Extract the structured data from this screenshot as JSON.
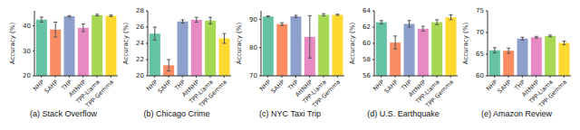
{
  "chart_data": [
    {
      "type": "bar",
      "title": "(a) Stack Overflow",
      "y_label": "Accuracy (%)",
      "categories": [
        "NHP",
        "SAHP",
        "THP",
        "AttNHP",
        "TPP-Llama",
        "TPP-Gemma"
      ],
      "values": [
        42.5,
        38.5,
        43.8,
        39.2,
        44.3,
        44.0
      ],
      "errors": [
        1.0,
        3.0,
        0.3,
        1.5,
        0.3,
        0.3
      ],
      "colors": [
        "#66c2a5",
        "#fc8d62",
        "#8da0cb",
        "#e78ac3",
        "#a6d854",
        "#ffd92f"
      ],
      "ylim": [
        20,
        46
      ],
      "yticks": [
        20,
        30,
        40
      ],
      "grid": false
    },
    {
      "type": "bar",
      "title": "(b) Chicago Crime",
      "y_label": "Accuracy (%)",
      "categories": [
        "NHP",
        "SAHP",
        "THP",
        "AttNHP",
        "TPP-Llama",
        "TPP-Gemma"
      ],
      "values": [
        25.2,
        21.3,
        26.7,
        26.9,
        26.8,
        24.6
      ],
      "errors": [
        0.8,
        0.7,
        0.2,
        0.3,
        0.4,
        0.6
      ],
      "colors": [
        "#66c2a5",
        "#fc8d62",
        "#8da0cb",
        "#e78ac3",
        "#a6d854",
        "#ffd92f"
      ],
      "ylim": [
        20,
        28
      ],
      "yticks": [
        20,
        22,
        24,
        26,
        28
      ],
      "grid": false
    },
    {
      "type": "bar",
      "title": "(c) NYC Taxi Trip",
      "y_label": "Accuracy (%)",
      "categories": [
        "NHP",
        "SAHP",
        "THP",
        "AttNHP",
        "TPP-Llama",
        "TPP-Gemma"
      ],
      "values": [
        91.0,
        88.3,
        91.0,
        83.8,
        91.6,
        91.6
      ],
      "errors": [
        0.2,
        0.5,
        0.4,
        7.5,
        0.4,
        0.2
      ],
      "colors": [
        "#66c2a5",
        "#fc8d62",
        "#8da0cb",
        "#e78ac3",
        "#a6d854",
        "#ffd92f"
      ],
      "ylim": [
        70,
        93
      ],
      "yticks": [
        70,
        80,
        90
      ],
      "grid": false
    },
    {
      "type": "bar",
      "title": "(d) U.S. Earthquake",
      "y_label": "Accuracy (%)",
      "categories": [
        "NHP",
        "SAHP",
        "THP",
        "AttNHP",
        "TPP-Llama",
        "TPP-Gemma"
      ],
      "values": [
        62.6,
        60.1,
        62.4,
        61.8,
        62.6,
        63.2
      ],
      "errors": [
        0.2,
        0.8,
        0.4,
        0.3,
        0.3,
        0.3
      ],
      "colors": [
        "#66c2a5",
        "#fc8d62",
        "#8da0cb",
        "#e78ac3",
        "#a6d854",
        "#ffd92f"
      ],
      "ylim": [
        56,
        64
      ],
      "yticks": [
        56,
        58,
        60,
        62,
        64
      ],
      "grid": false
    },
    {
      "type": "bar",
      "title": "(e) Amazon Review",
      "y_label": "Accuracy (%)",
      "categories": [
        "NHP",
        "SAHP",
        "THP",
        "AttNHP",
        "TPP-Llama",
        "TPP-Gemma"
      ],
      "values": [
        65.9,
        65.8,
        68.6,
        68.9,
        69.2,
        67.6
      ],
      "errors": [
        0.6,
        0.6,
        0.3,
        0.2,
        0.2,
        0.4
      ],
      "colors": [
        "#66c2a5",
        "#fc8d62",
        "#8da0cb",
        "#e78ac3",
        "#a6d854",
        "#ffd92f"
      ],
      "ylim": [
        60,
        75
      ],
      "yticks": [
        60,
        65,
        70,
        75
      ],
      "grid": false
    }
  ]
}
